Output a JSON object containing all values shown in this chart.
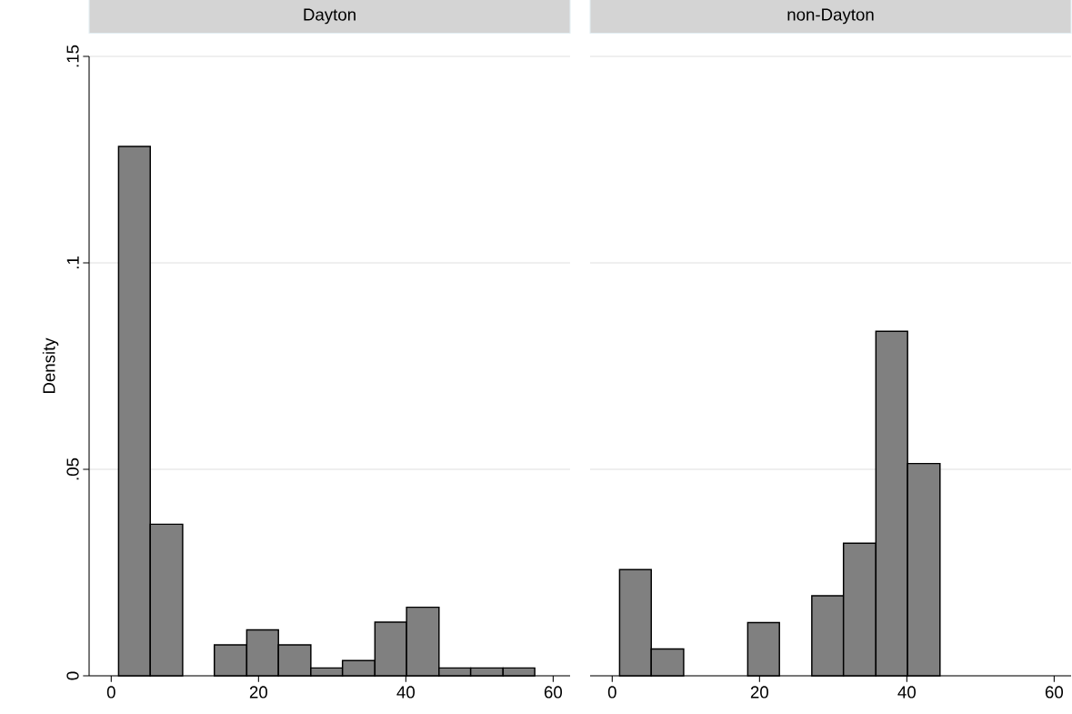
{
  "chart_data": [
    {
      "type": "histogram",
      "title": "Dayton",
      "ylabel": "Density",
      "color": "#808080",
      "bins": [
        1,
        5.3,
        9.7,
        14,
        18.4,
        22.7,
        27.1,
        31.4,
        35.8,
        40.1,
        44.5,
        48.8,
        53.2,
        57.5
      ],
      "values": [
        0.1282,
        0.0367,
        0,
        0.0075,
        0.0111,
        0.0075,
        0.0019,
        0.0037,
        0.013,
        0.0166,
        0.0019,
        0.0019,
        0.0019
      ],
      "xlim": [
        -3,
        62.3
      ],
      "ylim": [
        0,
        0.15
      ],
      "xticks": [
        0,
        20,
        40,
        60
      ],
      "yticks": [
        {
          "value": 0,
          "label": "0"
        },
        {
          "value": 0.05,
          "label": ".05"
        },
        {
          "value": 0.1,
          "label": ".1"
        },
        {
          "value": 0.15,
          "label": ".15"
        }
      ],
      "grid": "y"
    },
    {
      "type": "histogram",
      "title": "non-Dayton",
      "color": "#808080",
      "bins": [
        1,
        5.3,
        9.7,
        18.4,
        22.7,
        27.1,
        31.4,
        35.8,
        40.1,
        44.5
      ],
      "values": [
        0.0257,
        0.0065,
        0,
        0.0129,
        0,
        0.0194,
        0.0321,
        0.0834,
        0.0514
      ],
      "xlim": [
        -3,
        62.3
      ],
      "ylim": [
        0,
        0.15
      ],
      "xticks": [
        0,
        20,
        40,
        60
      ],
      "yticks": [
        0,
        0.05,
        0.1,
        0.15
      ],
      "grid": "y",
      "tick_labels": "x"
    }
  ]
}
